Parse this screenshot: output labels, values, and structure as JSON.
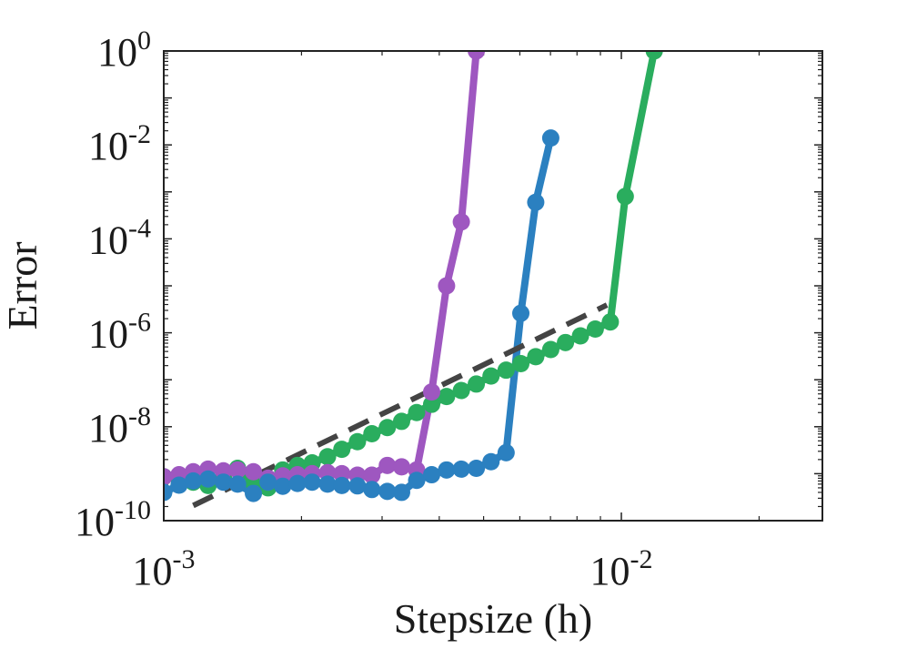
{
  "chart_data": {
    "type": "line",
    "title": "",
    "xlabel": "Stepsize (h)",
    "ylabel": "Error",
    "x_scale": "log",
    "y_scale": "log",
    "xlim": [
      0.001,
      0.0275
    ],
    "ylim": [
      1e-10,
      1
    ],
    "grid": false,
    "x_ticks": [
      {
        "value": 0.001,
        "base": "10",
        "exp": "-3"
      },
      {
        "value": 0.01,
        "base": "10",
        "exp": "-2"
      }
    ],
    "y_ticks": [
      {
        "value": 1,
        "base": "10",
        "exp": "0"
      },
      {
        "value": 0.01,
        "base": "10",
        "exp": "-2"
      },
      {
        "value": 0.0001,
        "base": "10",
        "exp": "-4"
      },
      {
        "value": 1e-06,
        "base": "10",
        "exp": "-6"
      },
      {
        "value": 1e-08,
        "base": "10",
        "exp": "-8"
      },
      {
        "value": 1e-10,
        "base": "10",
        "exp": "-10"
      }
    ],
    "series": [
      {
        "name": "green",
        "color": "#2aad5e",
        "x": [
          0.001,
          0.00108,
          0.00116,
          0.00125,
          0.00135,
          0.00145,
          0.00157,
          0.00169,
          0.00182,
          0.00196,
          0.00211,
          0.00228,
          0.00245,
          0.00265,
          0.00285,
          0.00308,
          0.00331,
          0.00357,
          0.00385,
          0.00415,
          0.00447,
          0.00482,
          0.00519,
          0.0056,
          0.00603,
          0.0065,
          0.00701,
          0.00755,
          0.00814,
          0.00877,
          0.00946,
          0.0102,
          0.0118
        ],
        "y": [
          8.6e-10,
          7.8e-10,
          6.6e-10,
          5.6e-10,
          8.2e-10,
          1.3e-09,
          6.5e-10,
          5e-10,
          1.2e-09,
          1.5e-09,
          1.7e-09,
          2.3e-09,
          3.3e-09,
          4.8e-09,
          7.1e-09,
          9.6e-09,
          1.3e-08,
          2e-08,
          3e-08,
          4.4e-08,
          5.9e-08,
          8.1e-08,
          1.2e-07,
          1.6e-07,
          2.2e-07,
          3.1e-07,
          4.4e-07,
          6.2e-07,
          8.6e-07,
          1.2e-06,
          1.7e-06,
          0.0008,
          1.0
        ]
      },
      {
        "name": "blue",
        "color": "#2b80c0",
        "x": [
          0.001,
          0.00108,
          0.00116,
          0.00125,
          0.00135,
          0.00145,
          0.00157,
          0.00169,
          0.00182,
          0.00196,
          0.00211,
          0.00228,
          0.00245,
          0.00265,
          0.00285,
          0.00308,
          0.00331,
          0.00357,
          0.00385,
          0.00415,
          0.00447,
          0.00482,
          0.00519,
          0.0056,
          0.00603,
          0.0065,
          0.00701
        ],
        "y": [
          4e-10,
          5.7e-10,
          7e-10,
          7.7e-10,
          6.6e-10,
          6e-10,
          3.8e-10,
          6.6e-10,
          5.4e-10,
          6.2e-10,
          6.6e-10,
          6e-10,
          5.6e-10,
          5.5e-10,
          4.6e-10,
          4.2e-10,
          4e-10,
          7.2e-10,
          9.5e-10,
          1.2e-09,
          1.25e-09,
          1.3e-09,
          1.8e-09,
          2.8e-09,
          2.6e-06,
          0.0006,
          0.014
        ]
      },
      {
        "name": "purple",
        "color": "#9e57c0",
        "x": [
          0.001,
          0.00108,
          0.00116,
          0.00125,
          0.00135,
          0.00145,
          0.00157,
          0.00169,
          0.00182,
          0.00196,
          0.00211,
          0.00228,
          0.00245,
          0.00265,
          0.00285,
          0.00308,
          0.00331,
          0.00357,
          0.00385,
          0.00415,
          0.00447,
          0.00482
        ],
        "y": [
          8.6e-10,
          9.5e-10,
          1.1e-09,
          1.25e-09,
          1.15e-09,
          1.2e-09,
          1.1e-09,
          8e-10,
          9e-10,
          9.5e-10,
          1e-09,
          1.05e-09,
          1e-09,
          9.3e-10,
          9.3e-10,
          1.5e-09,
          1.4e-09,
          1.2e-09,
          5.5e-08,
          1e-05,
          0.00023,
          1.0
        ]
      }
    ],
    "reference_line": {
      "name": "reference-slope",
      "color": "#444444",
      "style": "dashed",
      "x": [
        0.00116,
        0.0093
      ],
      "y": [
        2.1e-10,
        3.9e-06
      ]
    }
  }
}
